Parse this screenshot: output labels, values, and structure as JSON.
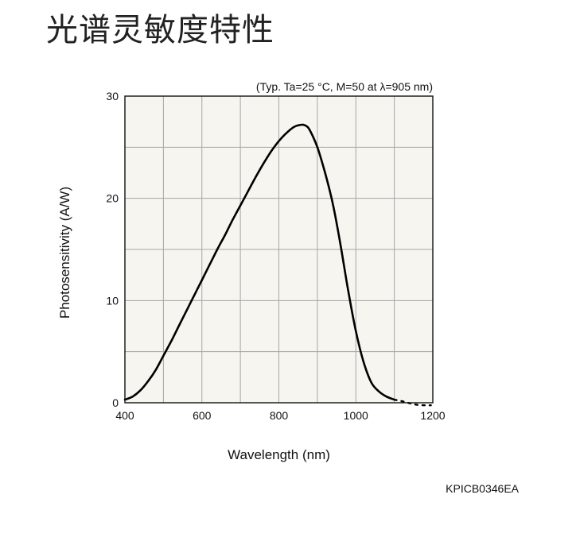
{
  "page": {
    "title": "光谱灵敏度特性",
    "figure_code": "KPICB0346EA"
  },
  "chart_data": {
    "type": "line",
    "conditions": "(Typ. Ta=25 °C, M=50 at λ=905 nm)",
    "xlabel": "Wavelength (nm)",
    "ylabel": "Photosensitivity (A/W)",
    "xlim": [
      400,
      1200
    ],
    "ylim": [
      0,
      30
    ],
    "x_ticks": [
      400,
      600,
      800,
      1000,
      1200
    ],
    "y_ticks": [
      0,
      10,
      20,
      30
    ],
    "x_gridlines": [
      400,
      500,
      600,
      700,
      800,
      900,
      1000,
      1100,
      1200
    ],
    "y_gridlines": [
      0,
      5,
      10,
      15,
      20,
      25,
      30
    ],
    "grid": true,
    "plot_background": "#f6f5ef",
    "grid_color": "#a6a6a6",
    "line_color": "#000000",
    "series": [
      {
        "x": [
          400,
          420,
          440,
          460,
          480,
          500,
          520,
          540,
          560,
          580,
          600,
          620,
          640,
          660,
          680,
          700,
          720,
          740,
          760,
          780,
          800,
          820,
          840,
          860,
          870,
          880,
          900,
          920,
          940,
          960,
          980,
          1000,
          1020,
          1040,
          1060,
          1080,
          1100
        ],
        "y": [
          0.3,
          0.6,
          1.2,
          2.1,
          3.2,
          4.6,
          6.0,
          7.5,
          9.0,
          10.5,
          12.0,
          13.5,
          15.0,
          16.4,
          17.9,
          19.3,
          20.7,
          22.1,
          23.4,
          24.6,
          25.6,
          26.4,
          27.0,
          27.2,
          27.1,
          26.7,
          25.0,
          22.5,
          19.5,
          15.5,
          11.0,
          7.0,
          4.0,
          2.0,
          1.1,
          0.6,
          0.3
        ]
      },
      {
        "style": "dotted",
        "x": [
          1100,
          1120,
          1140,
          1160,
          1180,
          1195
        ],
        "y": [
          0.3,
          0.15,
          -0.05,
          -0.2,
          -0.25,
          -0.25
        ]
      }
    ]
  }
}
